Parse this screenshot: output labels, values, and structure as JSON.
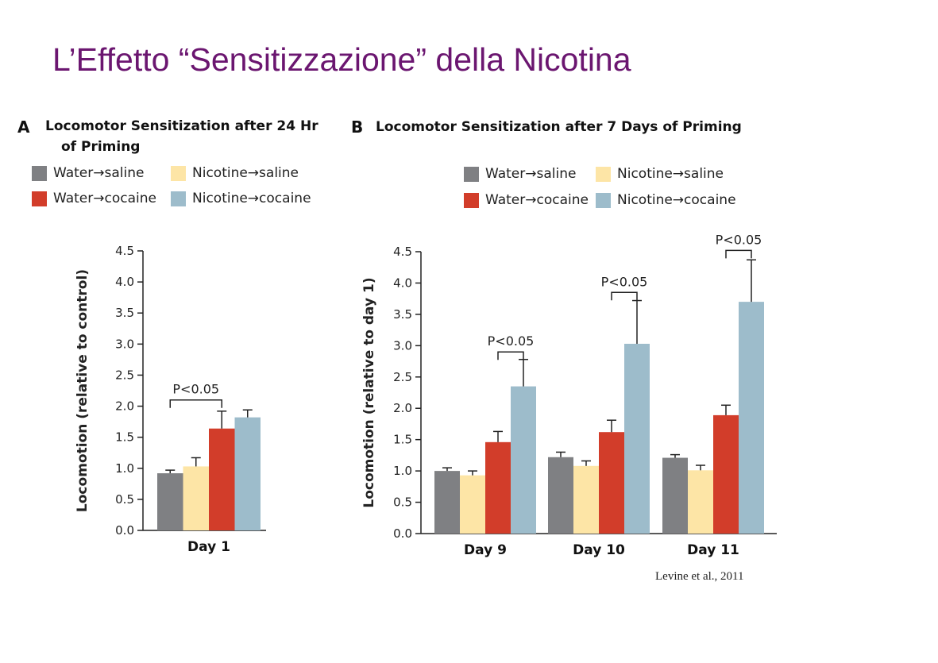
{
  "slide": {
    "title": "L’Effetto “Sensitizzazione” della Nicotina",
    "citation": "Levine et al., 2011"
  },
  "colors": {
    "Water→saline": "#7f8083",
    "Nicotine→saline": "#fde5a6",
    "Water→cocaine": "#d23d2a",
    "Nicotine→cocaine": "#9dbccb",
    "title": "#6b1670"
  },
  "legend": [
    {
      "name": "Water→saline",
      "color": "#7f8083"
    },
    {
      "name": "Nicotine→saline",
      "color": "#fde5a6"
    },
    {
      "name": "Water→cocaine",
      "color": "#d23d2a"
    },
    {
      "name": "Nicotine→cocaine",
      "color": "#9dbccb"
    }
  ],
  "panels": [
    {
      "letter": "A",
      "title_line1": "Locomotor Sensitization after 24 Hr",
      "title_line2": "of Priming"
    },
    {
      "letter": "B",
      "title_line1": "Locomotor Sensitization after 7 Days of Priming",
      "title_line2": ""
    }
  ],
  "chart_data": [
    {
      "type": "bar",
      "title": "Locomotor Sensitization after 24 Hr of Priming",
      "panel": "A",
      "xlabel": "",
      "ylabel": "Locomotion (relative to control)",
      "ylim": [
        0,
        4.5
      ],
      "yticks": [
        "0.0",
        "0.5",
        "1.0",
        "1.5",
        "2.0",
        "2.5",
        "3.0",
        "3.5",
        "4.0",
        "4.5"
      ],
      "categories": [
        "Day 1"
      ],
      "series": [
        {
          "name": "Water→saline",
          "values": [
            0.92
          ],
          "errors": [
            0.05
          ]
        },
        {
          "name": "Nicotine→saline",
          "values": [
            1.03
          ],
          "errors": [
            0.14
          ]
        },
        {
          "name": "Water→cocaine",
          "values": [
            1.64
          ],
          "errors": [
            0.28
          ]
        },
        {
          "name": "Nicotine→cocaine",
          "values": [
            1.82
          ],
          "errors": [
            0.12
          ]
        }
      ],
      "annotations": [
        {
          "text": "P<0.05",
          "category": 0,
          "from_series": 0,
          "to_series": 2,
          "y": 2.1
        }
      ]
    },
    {
      "type": "bar",
      "title": "Locomotor Sensitization after 7 Days of Priming",
      "panel": "B",
      "xlabel": "",
      "ylabel": "Locomotion (relative to day 1)",
      "ylim": [
        0,
        4.5
      ],
      "yticks": [
        "0.0",
        "0.5",
        "1.0",
        "1.5",
        "2.0",
        "2.5",
        "3.0",
        "3.5",
        "4.0",
        "4.5"
      ],
      "categories": [
        "Day 9",
        "Day 10",
        "Day 11"
      ],
      "series": [
        {
          "name": "Water→saline",
          "values": [
            1.0,
            1.22,
            1.21
          ],
          "errors": [
            0.05,
            0.08,
            0.05
          ]
        },
        {
          "name": "Nicotine→saline",
          "values": [
            0.93,
            1.08,
            1.01
          ],
          "errors": [
            0.07,
            0.08,
            0.08
          ]
        },
        {
          "name": "Water→cocaine",
          "values": [
            1.46,
            1.62,
            1.89
          ],
          "errors": [
            0.17,
            0.19,
            0.16
          ]
        },
        {
          "name": "Nicotine→cocaine",
          "values": [
            2.35,
            3.03,
            3.7
          ],
          "errors": [
            0.43,
            0.69,
            0.67
          ]
        }
      ],
      "annotations": [
        {
          "text": "P<0.05",
          "category": 0,
          "from_series": 2,
          "to_series": 3,
          "y": 2.9
        },
        {
          "text": "P<0.05",
          "category": 1,
          "from_series": 2,
          "to_series": 3,
          "y": 3.85
        },
        {
          "text": "P<0.05",
          "category": 2,
          "from_series": 2,
          "to_series": 3,
          "y": 4.52
        }
      ]
    }
  ]
}
